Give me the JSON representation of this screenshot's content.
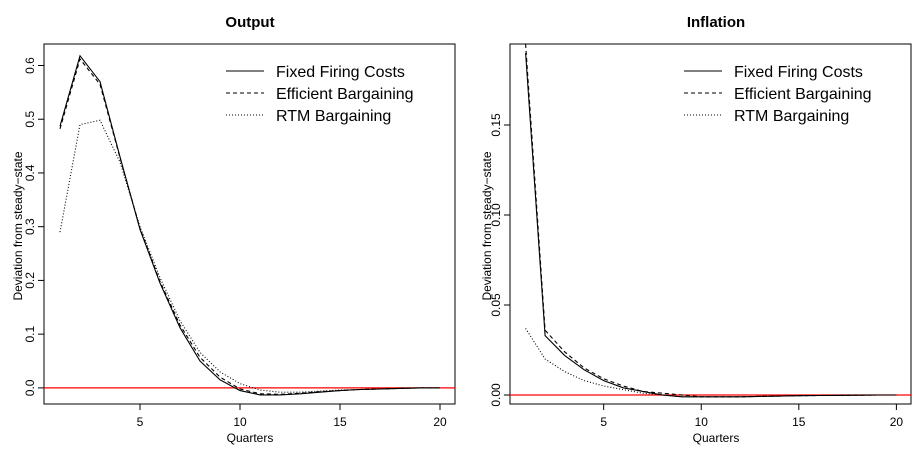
{
  "chart_data": [
    {
      "type": "line",
      "title": "Output",
      "xlabel": "Quarters",
      "ylabel": "Deviation from steady−state",
      "xlim": [
        0.2,
        20.8
      ],
      "ylim": [
        -0.03,
        0.64
      ],
      "xticks": [
        5,
        10,
        15,
        20
      ],
      "yticks": [
        0.0,
        0.1,
        0.2,
        0.3,
        0.4,
        0.5,
        0.6
      ],
      "ytick_labels": [
        "0.0",
        "0.1",
        "0.2",
        "0.3",
        "0.4",
        "0.5",
        "0.6"
      ],
      "hline": {
        "y": 0,
        "color": "#ff0000"
      },
      "legend": "top-right",
      "series": [
        {
          "name": "Fixed Firing Costs",
          "style": "solid",
          "x": [
            1,
            2,
            3,
            4,
            5,
            6,
            7,
            8,
            9,
            10,
            11,
            12,
            13,
            14,
            15,
            16,
            17,
            18,
            19,
            20
          ],
          "y": [
            0.487,
            0.618,
            0.57,
            0.43,
            0.295,
            0.195,
            0.112,
            0.05,
            0.015,
            -0.005,
            -0.013,
            -0.013,
            -0.011,
            -0.008,
            -0.005,
            -0.003,
            -0.002,
            -0.001,
            0.0,
            0.0
          ]
        },
        {
          "name": "Efficient Bargaining",
          "style": "dashed",
          "x": [
            1,
            2,
            3,
            4,
            5,
            6,
            7,
            8,
            9,
            10,
            11,
            12,
            13,
            14,
            15,
            16,
            17,
            18,
            19,
            20
          ],
          "y": [
            0.482,
            0.612,
            0.565,
            0.428,
            0.297,
            0.198,
            0.117,
            0.057,
            0.02,
            -0.002,
            -0.011,
            -0.012,
            -0.01,
            -0.007,
            -0.005,
            -0.003,
            -0.002,
            -0.001,
            0.0,
            0.0
          ]
        },
        {
          "name": "RTM Bargaining",
          "style": "dotted",
          "x": [
            1,
            2,
            3,
            4,
            5,
            6,
            7,
            8,
            9,
            10,
            11,
            12,
            13,
            14,
            15,
            16,
            17,
            18,
            19,
            20
          ],
          "y": [
            0.29,
            0.49,
            0.498,
            0.42,
            0.3,
            0.205,
            0.125,
            0.066,
            0.03,
            0.008,
            -0.004,
            -0.008,
            -0.008,
            -0.006,
            -0.004,
            -0.003,
            -0.002,
            -0.001,
            0.0,
            0.0
          ]
        }
      ]
    },
    {
      "type": "line",
      "title": "Inflation",
      "xlabel": "Quarters",
      "ylabel": "Deviation from steady−state",
      "xlim": [
        0.2,
        20.8
      ],
      "ylim": [
        -0.005,
        0.195
      ],
      "xticks": [
        5,
        10,
        15,
        20
      ],
      "yticks": [
        0.0,
        0.05,
        0.1,
        0.15
      ],
      "ytick_labels": [
        "0.00",
        "0.05",
        "0.10",
        "0.15"
      ],
      "hline": {
        "y": 0,
        "color": "#ff0000"
      },
      "legend": "top-right",
      "series": [
        {
          "name": "Fixed Firing Costs",
          "style": "solid",
          "x": [
            1,
            2,
            3,
            4,
            5,
            6,
            7,
            8,
            9,
            10,
            11,
            12,
            13,
            14,
            15,
            16,
            17,
            18,
            19,
            20
          ],
          "y": [
            0.19,
            0.033,
            0.022,
            0.014,
            0.008,
            0.004,
            0.002,
            0.0,
            -0.001,
            -0.001,
            -0.001,
            -0.001,
            -0.0008,
            -0.0006,
            -0.0004,
            -0.0003,
            -0.0002,
            -0.0001,
            0.0,
            0.0
          ]
        },
        {
          "name": "Efficient Bargaining",
          "style": "dashed",
          "x": [
            1,
            2,
            3,
            4,
            5,
            6,
            7,
            8,
            9,
            10,
            11,
            12,
            13,
            14,
            15,
            16,
            17,
            18,
            19,
            20
          ],
          "y": [
            0.195,
            0.036,
            0.024,
            0.015,
            0.009,
            0.005,
            0.002,
            0.001,
            0.0,
            -0.001,
            -0.001,
            -0.001,
            -0.0008,
            -0.0006,
            -0.0004,
            -0.0003,
            -0.0002,
            -0.0001,
            0.0,
            0.0
          ]
        },
        {
          "name": "RTM Bargaining",
          "style": "dotted",
          "x": [
            1,
            2,
            3,
            4,
            5,
            6,
            7,
            8,
            9,
            10,
            11,
            12,
            13,
            14,
            15,
            16,
            17,
            18,
            19,
            20
          ],
          "y": [
            0.037,
            0.02,
            0.013,
            0.008,
            0.005,
            0.003,
            0.001,
            0.0,
            -0.001,
            -0.001,
            -0.001,
            -0.001,
            -0.0008,
            -0.0006,
            -0.0004,
            -0.0003,
            -0.0002,
            -0.0001,
            0.0,
            0.0
          ]
        }
      ]
    }
  ]
}
